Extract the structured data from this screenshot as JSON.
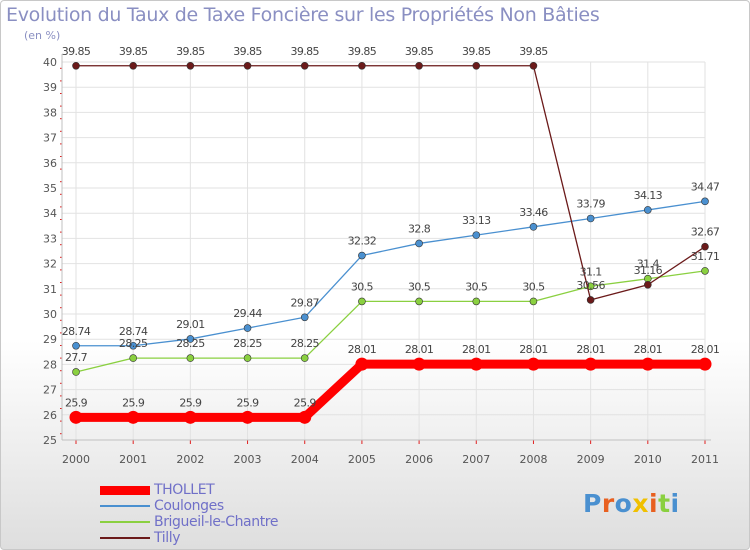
{
  "chart_data": {
    "type": "line",
    "title": "Evolution du Taux de Taxe Foncière sur les Propriétés Non Bâties",
    "unit_label": "(en %)",
    "x": [
      "2000",
      "2001",
      "2002",
      "2003",
      "2004",
      "2005",
      "2006",
      "2007",
      "2008",
      "2009",
      "2010",
      "2011"
    ],
    "ylim": [
      25,
      40
    ],
    "yticks": [
      25,
      26,
      27,
      28,
      29,
      30,
      31,
      32,
      33,
      34,
      35,
      36,
      37,
      38,
      39,
      40
    ],
    "grid": true,
    "legend_position": "bottom-left",
    "series": [
      {
        "name": "THOLLET",
        "color": "#ff0000",
        "values": [
          25.9,
          25.9,
          25.9,
          25.9,
          25.9,
          28.01,
          28.01,
          28.01,
          28.01,
          28.01,
          28.01,
          28.01
        ],
        "labels": [
          "25.9",
          "25.9",
          "25.9",
          "25.9",
          "25.9",
          "28.01",
          "28.01",
          "28.01",
          "28.01",
          "28.01",
          "28.01",
          "28.01"
        ]
      },
      {
        "name": "Coulonges",
        "color": "#4a90d0",
        "values": [
          28.74,
          28.74,
          29.01,
          29.44,
          29.87,
          32.32,
          32.8,
          33.13,
          33.46,
          33.79,
          34.13,
          34.47
        ],
        "labels": [
          "28.74",
          "28.74",
          "29.01",
          "29.44",
          "29.87",
          "32.32",
          "32.8",
          "33.13",
          "33.46",
          "33.79",
          "34.13",
          "34.47"
        ]
      },
      {
        "name": "Brigueil-le-Chantre",
        "color": "#8ad040",
        "values": [
          27.7,
          28.25,
          28.25,
          28.25,
          28.25,
          30.5,
          30.5,
          30.5,
          30.5,
          31.1,
          31.4,
          31.71
        ],
        "labels": [
          "27.7",
          "28.25",
          "28.25",
          "28.25",
          "28.25",
          "30.5",
          "30.5",
          "30.5",
          "30.5",
          "31.1",
          "31.4",
          "31.71"
        ]
      },
      {
        "name": "Tilly",
        "color": "#6b1a1a",
        "values": [
          39.85,
          39.85,
          39.85,
          39.85,
          39.85,
          39.85,
          39.85,
          39.85,
          39.85,
          30.56,
          31.16,
          32.67
        ],
        "labels": [
          "39.85",
          "39.85",
          "39.85",
          "39.85",
          "39.85",
          "39.85",
          "39.85",
          "39.85",
          "39.85",
          "30.56",
          "31.16",
          "32.67"
        ]
      }
    ]
  },
  "brand": {
    "text": "Proxiti",
    "letter_colors": [
      "#4a90d0",
      "#e86020",
      "#4a90d0",
      "#f0c000",
      "#e86020",
      "#8ad040",
      "#4a90d0"
    ]
  }
}
